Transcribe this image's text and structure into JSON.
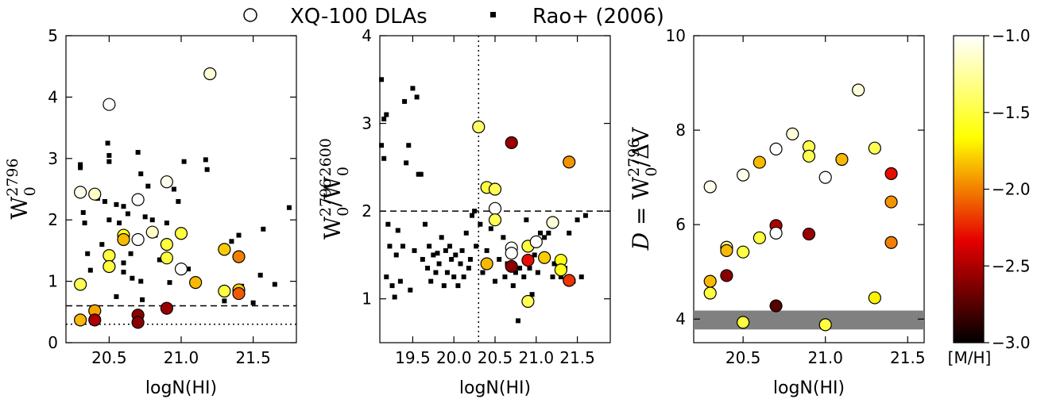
{
  "legend": {
    "open_circle_label": "XQ-100 DLAs",
    "square_label": "Rao+ (2006)"
  },
  "chart_data": [
    {
      "type": "scatter",
      "xlabel": "logN(HI)",
      "ylabel": "W0 2796",
      "xlim": [
        20.2,
        21.8
      ],
      "ylim": [
        0,
        5
      ],
      "xticks": [
        "20.5",
        "21.0",
        "21.5"
      ],
      "yticks": [
        "0",
        "1",
        "2",
        "3",
        "4",
        "5"
      ],
      "hlines": [
        {
          "y": 0.6,
          "style": "dashed"
        },
        {
          "y": 0.3,
          "style": "dotted"
        }
      ],
      "xq100": [
        {
          "x": 20.3,
          "y": 2.45,
          "mh": -1.05
        },
        {
          "x": 20.4,
          "y": 2.42,
          "mh": -1.15
        },
        {
          "x": 20.5,
          "y": 3.88,
          "mh": -1.0
        },
        {
          "x": 20.6,
          "y": 1.75,
          "mh": -1.6
        },
        {
          "x": 20.6,
          "y": 1.68,
          "mh": -1.85
        },
        {
          "x": 20.7,
          "y": 2.33,
          "mh": -1.0
        },
        {
          "x": 20.7,
          "y": 1.68,
          "mh": -1.0
        },
        {
          "x": 20.8,
          "y": 1.8,
          "mh": -1.15
        },
        {
          "x": 20.9,
          "y": 2.62,
          "mh": -1.05
        },
        {
          "x": 21.2,
          "y": 4.38,
          "mh": -1.1
        },
        {
          "x": 20.3,
          "y": 0.95,
          "mh": -1.45
        },
        {
          "x": 20.5,
          "y": 1.42,
          "mh": -1.5
        },
        {
          "x": 20.5,
          "y": 1.24,
          "mh": -1.5
        },
        {
          "x": 20.9,
          "y": 1.6,
          "mh": -1.5
        },
        {
          "x": 20.9,
          "y": 1.38,
          "mh": -1.5
        },
        {
          "x": 21.0,
          "y": 1.78,
          "mh": -1.5
        },
        {
          "x": 21.0,
          "y": 1.2,
          "mh": -1.0
        },
        {
          "x": 21.1,
          "y": 0.98,
          "mh": -1.85
        },
        {
          "x": 21.3,
          "y": 1.52,
          "mh": -1.8
        },
        {
          "x": 21.4,
          "y": 1.4,
          "mh": -2.0
        },
        {
          "x": 21.3,
          "y": 0.84,
          "mh": -1.5
        },
        {
          "x": 21.4,
          "y": 0.86,
          "mh": -1.8
        },
        {
          "x": 21.4,
          "y": 0.8,
          "mh": -2.1
        },
        {
          "x": 20.3,
          "y": 0.37,
          "mh": -1.85
        },
        {
          "x": 20.4,
          "y": 0.52,
          "mh": -1.9
        },
        {
          "x": 20.4,
          "y": 0.37,
          "mh": -2.5
        },
        {
          "x": 20.7,
          "y": 0.45,
          "mh": -2.6
        },
        {
          "x": 20.7,
          "y": 0.33,
          "mh": -2.6
        },
        {
          "x": 20.9,
          "y": 0.56,
          "mh": -2.55
        }
      ],
      "rao": [
        {
          "x": 20.3,
          "y": 2.9
        },
        {
          "x": 20.3,
          "y": 2.85
        },
        {
          "x": 20.32,
          "y": 2.12
        },
        {
          "x": 20.33,
          "y": 1.95
        },
        {
          "x": 20.35,
          "y": 1.45
        },
        {
          "x": 20.37,
          "y": 1.18
        },
        {
          "x": 20.42,
          "y": 2.35
        },
        {
          "x": 20.45,
          "y": 1.6
        },
        {
          "x": 20.47,
          "y": 2.3
        },
        {
          "x": 20.49,
          "y": 3.25
        },
        {
          "x": 20.5,
          "y": 3.05
        },
        {
          "x": 20.5,
          "y": 2.95
        },
        {
          "x": 20.5,
          "y": 2.0
        },
        {
          "x": 20.55,
          "y": 2.25
        },
        {
          "x": 20.55,
          "y": 0.75
        },
        {
          "x": 20.57,
          "y": 1.95
        },
        {
          "x": 20.6,
          "y": 2.22
        },
        {
          "x": 20.6,
          "y": 1.3
        },
        {
          "x": 20.6,
          "y": 1.15
        },
        {
          "x": 20.63,
          "y": 2.1
        },
        {
          "x": 20.65,
          "y": 1.45
        },
        {
          "x": 20.66,
          "y": 1.05
        },
        {
          "x": 20.7,
          "y": 3.1
        },
        {
          "x": 20.72,
          "y": 2.75
        },
        {
          "x": 20.72,
          "y": 1.0
        },
        {
          "x": 20.73,
          "y": 0.7
        },
        {
          "x": 20.75,
          "y": 2.05
        },
        {
          "x": 20.77,
          "y": 2.55
        },
        {
          "x": 20.8,
          "y": 2.0
        },
        {
          "x": 20.82,
          "y": 1.75
        },
        {
          "x": 20.85,
          "y": 1.35
        },
        {
          "x": 20.9,
          "y": 1.95
        },
        {
          "x": 20.92,
          "y": 0.98
        },
        {
          "x": 20.95,
          "y": 2.5
        },
        {
          "x": 20.98,
          "y": 2.3
        },
        {
          "x": 21.02,
          "y": 2.95
        },
        {
          "x": 21.05,
          "y": 1.2
        },
        {
          "x": 21.17,
          "y": 2.98
        },
        {
          "x": 21.18,
          "y": 2.82
        },
        {
          "x": 21.35,
          "y": 1.65
        },
        {
          "x": 21.4,
          "y": 1.75
        },
        {
          "x": 21.42,
          "y": 0.92
        },
        {
          "x": 21.3,
          "y": 0.68
        },
        {
          "x": 21.5,
          "y": 0.65
        },
        {
          "x": 21.55,
          "y": 1.1
        },
        {
          "x": 21.57,
          "y": 1.85
        },
        {
          "x": 21.65,
          "y": 0.95
        },
        {
          "x": 21.75,
          "y": 2.2
        }
      ]
    },
    {
      "type": "scatter",
      "xlabel": "logN(HI)",
      "ylabel": "W0 2796 / W0 2600",
      "xlim": [
        19.1,
        21.9
      ],
      "ylim": [
        0.5,
        4
      ],
      "xticks": [
        "19.5",
        "20.0",
        "20.5",
        "21.0",
        "21.5"
      ],
      "yticks": [
        "1",
        "2",
        "3",
        "4"
      ],
      "hlines": [
        {
          "y": 2.0,
          "style": "dashed"
        }
      ],
      "vlines": [
        {
          "x": 20.3,
          "style": "dotted"
        }
      ],
      "xq100": [
        {
          "x": 20.3,
          "y": 2.96,
          "mh": -1.4
        },
        {
          "x": 20.4,
          "y": 2.27,
          "mh": -1.5
        },
        {
          "x": 20.5,
          "y": 2.25,
          "mh": -1.45
        },
        {
          "x": 20.5,
          "y": 2.03,
          "mh": -1.0
        },
        {
          "x": 20.5,
          "y": 1.9,
          "mh": -1.45
        },
        {
          "x": 20.7,
          "y": 2.78,
          "mh": -2.55
        },
        {
          "x": 21.4,
          "y": 2.56,
          "mh": -1.95
        },
        {
          "x": 21.2,
          "y": 1.87,
          "mh": -1.1
        },
        {
          "x": 20.7,
          "y": 1.58,
          "mh": -1.0
        },
        {
          "x": 20.7,
          "y": 1.52,
          "mh": -1.0
        },
        {
          "x": 20.9,
          "y": 1.6,
          "mh": -1.5
        },
        {
          "x": 21.0,
          "y": 1.65,
          "mh": -1.0
        },
        {
          "x": 20.4,
          "y": 1.4,
          "mh": -1.85
        },
        {
          "x": 20.7,
          "y": 1.37,
          "mh": -2.6
        },
        {
          "x": 20.9,
          "y": 1.44,
          "mh": -2.3
        },
        {
          "x": 21.1,
          "y": 1.47,
          "mh": -1.8
        },
        {
          "x": 21.3,
          "y": 1.44,
          "mh": -1.6
        },
        {
          "x": 21.3,
          "y": 1.33,
          "mh": -1.6
        },
        {
          "x": 21.4,
          "y": 1.21,
          "mh": -2.2
        },
        {
          "x": 20.9,
          "y": 0.97,
          "mh": -1.45
        }
      ],
      "rao": [
        {
          "x": 19.12,
          "y": 3.5
        },
        {
          "x": 19.15,
          "y": 3.05
        },
        {
          "x": 19.18,
          "y": 3.1
        },
        {
          "x": 19.12,
          "y": 2.75
        },
        {
          "x": 19.15,
          "y": 2.6
        },
        {
          "x": 19.2,
          "y": 1.85
        },
        {
          "x": 19.22,
          "y": 1.6
        },
        {
          "x": 19.18,
          "y": 1.25
        },
        {
          "x": 19.25,
          "y": 1.15
        },
        {
          "x": 19.28,
          "y": 1.02
        },
        {
          "x": 19.3,
          "y": 1.5
        },
        {
          "x": 19.32,
          "y": 1.78
        },
        {
          "x": 19.35,
          "y": 1.2
        },
        {
          "x": 19.38,
          "y": 1.6
        },
        {
          "x": 19.4,
          "y": 3.25
        },
        {
          "x": 19.42,
          "y": 2.55
        },
        {
          "x": 19.45,
          "y": 2.75
        },
        {
          "x": 19.47,
          "y": 1.1
        },
        {
          "x": 19.5,
          "y": 3.4
        },
        {
          "x": 19.52,
          "y": 1.55
        },
        {
          "x": 19.55,
          "y": 3.3
        },
        {
          "x": 19.57,
          "y": 2.42
        },
        {
          "x": 19.6,
          "y": 2.42
        },
        {
          "x": 19.62,
          "y": 1.45
        },
        {
          "x": 19.65,
          "y": 1.85
        },
        {
          "x": 19.68,
          "y": 1.35
        },
        {
          "x": 19.7,
          "y": 1.6
        },
        {
          "x": 19.72,
          "y": 1.2
        },
        {
          "x": 19.75,
          "y": 1.5
        },
        {
          "x": 19.78,
          "y": 1.3
        },
        {
          "x": 19.8,
          "y": 1.52
        },
        {
          "x": 19.82,
          "y": 1.4
        },
        {
          "x": 19.85,
          "y": 1.7
        },
        {
          "x": 19.88,
          "y": 1.15
        },
        {
          "x": 19.9,
          "y": 1.55
        },
        {
          "x": 19.92,
          "y": 1.3
        },
        {
          "x": 19.95,
          "y": 1.6
        },
        {
          "x": 19.97,
          "y": 1.45
        },
        {
          "x": 20.0,
          "y": 1.25
        },
        {
          "x": 20.02,
          "y": 1.5
        },
        {
          "x": 20.05,
          "y": 1.15
        },
        {
          "x": 20.08,
          "y": 1.4
        },
        {
          "x": 20.1,
          "y": 1.55
        },
        {
          "x": 20.12,
          "y": 1.25
        },
        {
          "x": 20.15,
          "y": 1.75
        },
        {
          "x": 20.18,
          "y": 1.35
        },
        {
          "x": 20.2,
          "y": 1.45
        },
        {
          "x": 20.22,
          "y": 1.95
        },
        {
          "x": 20.25,
          "y": 2.0
        },
        {
          "x": 20.27,
          "y": 1.6
        },
        {
          "x": 20.32,
          "y": 1.85
        },
        {
          "x": 20.35,
          "y": 1.3
        },
        {
          "x": 20.4,
          "y": 1.55
        },
        {
          "x": 20.45,
          "y": 1.8
        },
        {
          "x": 20.5,
          "y": 1.2
        },
        {
          "x": 20.55,
          "y": 1.45
        },
        {
          "x": 20.6,
          "y": 1.7
        },
        {
          "x": 20.62,
          "y": 1.25
        },
        {
          "x": 20.65,
          "y": 1.4
        },
        {
          "x": 20.68,
          "y": 1.55
        },
        {
          "x": 20.72,
          "y": 1.15
        },
        {
          "x": 20.75,
          "y": 1.3
        },
        {
          "x": 20.78,
          "y": 0.75
        },
        {
          "x": 20.8,
          "y": 1.35
        },
        {
          "x": 20.85,
          "y": 1.25
        },
        {
          "x": 20.88,
          "y": 1.9
        },
        {
          "x": 20.92,
          "y": 1.35
        },
        {
          "x": 20.95,
          "y": 1.05
        },
        {
          "x": 20.98,
          "y": 1.5
        },
        {
          "x": 21.02,
          "y": 1.3
        },
        {
          "x": 21.05,
          "y": 1.75
        },
        {
          "x": 21.1,
          "y": 1.7
        },
        {
          "x": 21.15,
          "y": 1.75
        },
        {
          "x": 21.2,
          "y": 1.25
        },
        {
          "x": 21.22,
          "y": 1.4
        },
        {
          "x": 21.3,
          "y": 1.25
        },
        {
          "x": 21.35,
          "y": 1.35
        },
        {
          "x": 21.4,
          "y": 1.75
        },
        {
          "x": 21.45,
          "y": 1.2
        },
        {
          "x": 21.5,
          "y": 1.9
        },
        {
          "x": 21.55,
          "y": 1.25
        },
        {
          "x": 21.6,
          "y": 1.95
        }
      ]
    },
    {
      "type": "scatter",
      "xlabel": "logN(HI)",
      "ylabel": "D = W0 2796 / ΔV",
      "xlim": [
        20.2,
        21.6
      ],
      "ylim": [
        3.5,
        10
      ],
      "xticks": [
        "20.5",
        "21.0",
        "21.5"
      ],
      "yticks": [
        "4",
        "6",
        "8",
        "10"
      ],
      "band": {
        "y0": 3.78,
        "y1": 4.18,
        "color": "#808080"
      },
      "xq100": [
        {
          "x": 20.3,
          "y": 6.8,
          "mh": -1.05
        },
        {
          "x": 20.5,
          "y": 7.05,
          "mh": -1.05
        },
        {
          "x": 20.6,
          "y": 7.32,
          "mh": -1.85
        },
        {
          "x": 20.7,
          "y": 7.6,
          "mh": -1.0
        },
        {
          "x": 20.8,
          "y": 7.92,
          "mh": -1.1
        },
        {
          "x": 20.9,
          "y": 7.65,
          "mh": -1.45
        },
        {
          "x": 20.9,
          "y": 7.45,
          "mh": -1.45
        },
        {
          "x": 21.0,
          "y": 7.0,
          "mh": -1.0
        },
        {
          "x": 21.1,
          "y": 7.38,
          "mh": -1.85
        },
        {
          "x": 21.2,
          "y": 8.85,
          "mh": -1.1
        },
        {
          "x": 21.3,
          "y": 7.62,
          "mh": -1.45
        },
        {
          "x": 21.4,
          "y": 7.08,
          "mh": -2.3
        },
        {
          "x": 21.4,
          "y": 6.48,
          "mh": -1.95
        },
        {
          "x": 21.4,
          "y": 5.62,
          "mh": -2.0
        },
        {
          "x": 20.4,
          "y": 5.52,
          "mh": -1.3
        },
        {
          "x": 20.4,
          "y": 5.45,
          "mh": -1.85
        },
        {
          "x": 20.5,
          "y": 5.42,
          "mh": -1.5
        },
        {
          "x": 20.6,
          "y": 5.72,
          "mh": -1.5
        },
        {
          "x": 20.7,
          "y": 5.98,
          "mh": -2.5
        },
        {
          "x": 20.7,
          "y": 5.82,
          "mh": -1.0
        },
        {
          "x": 20.9,
          "y": 5.8,
          "mh": -2.55
        },
        {
          "x": 20.3,
          "y": 4.8,
          "mh": -1.85
        },
        {
          "x": 20.3,
          "y": 4.55,
          "mh": -1.5
        },
        {
          "x": 20.4,
          "y": 4.92,
          "mh": -2.6
        },
        {
          "x": 20.7,
          "y": 4.28,
          "mh": -2.75
        },
        {
          "x": 21.3,
          "y": 4.45,
          "mh": -1.7
        },
        {
          "x": 20.5,
          "y": 3.93,
          "mh": -1.5
        },
        {
          "x": 21.0,
          "y": 3.88,
          "mh": -1.5
        }
      ]
    }
  ],
  "colorbar": {
    "label": "[M/H]",
    "range": [
      -3.0,
      -1.0
    ],
    "ticks": [
      "−1.0",
      "−1.5",
      "−2.0",
      "−2.5",
      "−3.0"
    ]
  }
}
